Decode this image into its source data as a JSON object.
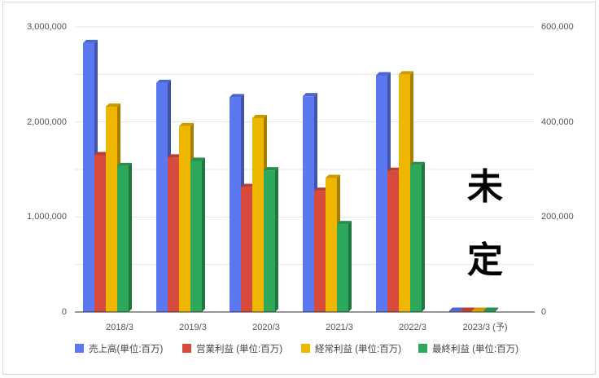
{
  "chart_data": {
    "type": "bar",
    "categories": [
      "2018/3",
      "2019/3",
      "2020/3",
      "2021/3",
      "2022/3",
      "2023/3 (予)"
    ],
    "series": [
      {
        "name": "売上高(単位:百万)",
        "axis": "left",
        "color": "#5b78f0",
        "values": [
          2830000,
          2410000,
          2260000,
          2270000,
          2490000,
          0
        ]
      },
      {
        "name": "営業利益 (単位:百万)",
        "axis": "right",
        "color": "#d84a3b",
        "values": [
          330000,
          325000,
          263000,
          255000,
          297000,
          0
        ]
      },
      {
        "name": "経常利益 (単位:百万)",
        "axis": "right",
        "color": "#efb600",
        "values": [
          432000,
          391000,
          408000,
          282000,
          500000,
          0
        ]
      },
      {
        "name": "最終利益 (単位:百万)",
        "axis": "right",
        "color": "#2da85a",
        "values": [
          307000,
          318000,
          298000,
          185000,
          309000,
          0
        ]
      }
    ],
    "y_left": {
      "min": 0,
      "max": 3000000,
      "ticks": [
        "0",
        "1,000,000",
        "2,000,000",
        "3,000,000"
      ]
    },
    "y_right": {
      "min": 0,
      "max": 600000,
      "ticks": [
        "0",
        "200,000",
        "400,000",
        "600,000"
      ]
    },
    "grid": true,
    "legend_position": "bottom",
    "annotation": [
      "未",
      "定"
    ]
  }
}
